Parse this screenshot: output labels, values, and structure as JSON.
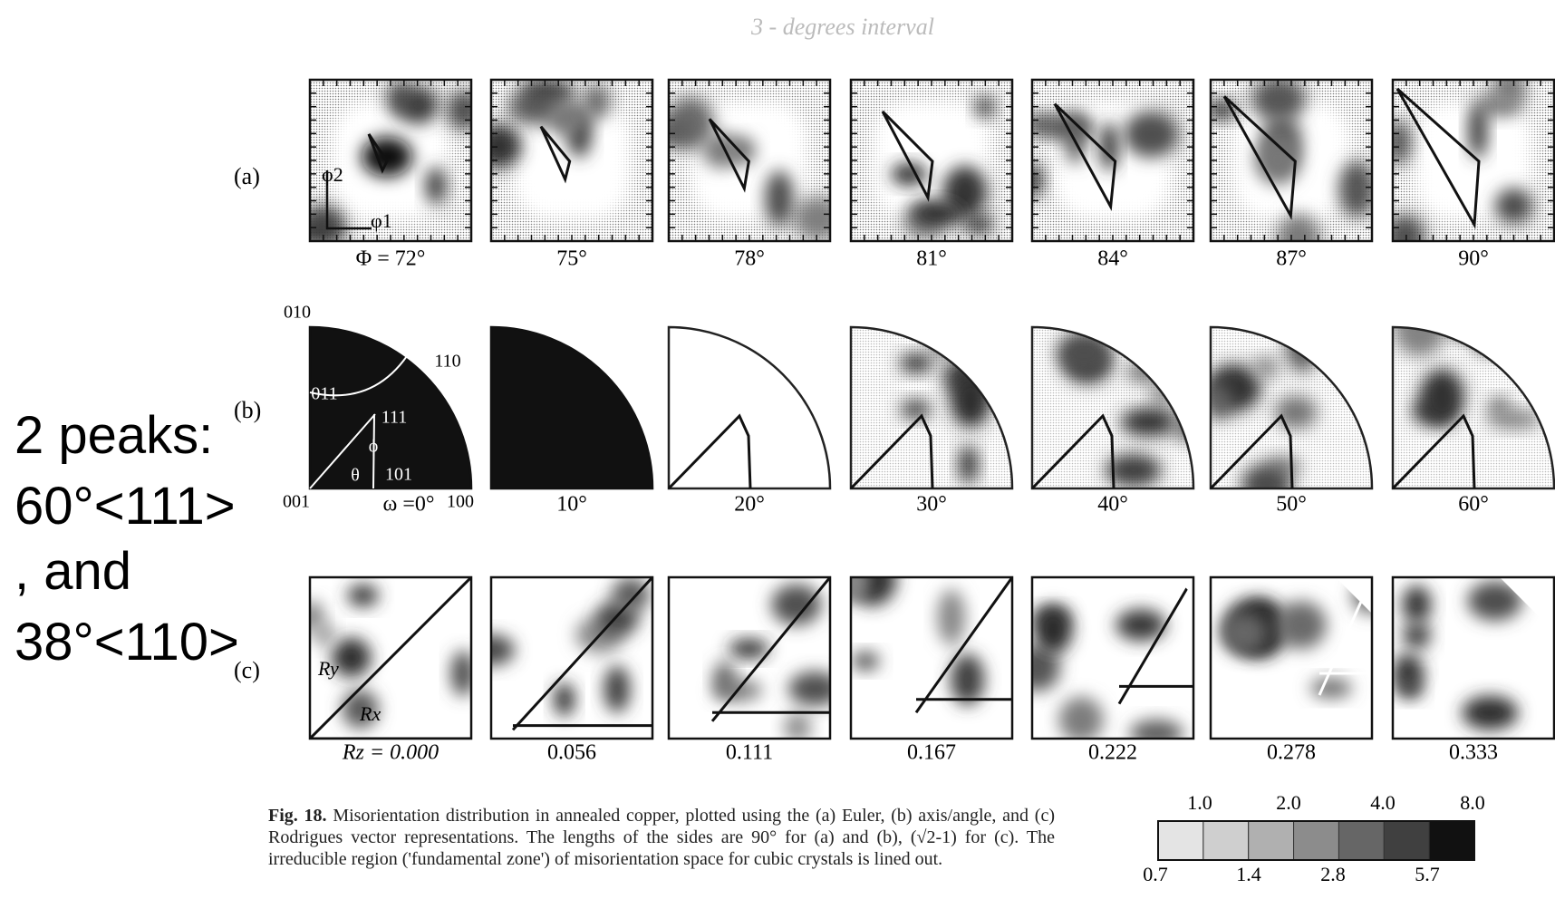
{
  "handwritten": "3 - degrees interval",
  "overlay_text": [
    "2 peaks:",
    "60°<111>",
    ", and",
    "38°<110>"
  ],
  "rows": [
    {
      "label": "(a)",
      "captions": [
        "Φ = 72°",
        "75°",
        "78°",
        "81°",
        "84°",
        "87°",
        "90°"
      ],
      "annotations": [
        "φ2",
        "φ1"
      ]
    },
    {
      "label": "(b)",
      "captions": [
        "ω =0°",
        "10°",
        "20°",
        "30°",
        "40°",
        "50°",
        "60°"
      ],
      "annotations": [
        "010",
        "110",
        "011",
        "111",
        "101",
        "001",
        "100",
        "θ",
        "ϕ"
      ]
    },
    {
      "label": "(c)",
      "captions": [
        "Rz = 0.000",
        "0.056",
        "0.111",
        "0.167",
        "0.222",
        "0.278",
        "0.333"
      ],
      "annotations": [
        "Ry",
        "Rx"
      ]
    }
  ],
  "caption": {
    "label": "Fig. 18.",
    "text": "Misorientation distribution in annealed copper, plotted using the (a) Euler, (b) axis/angle, and (c) Rodrigues vector representations. The lengths of the sides are 90° for (a) and (b), (√2-1) for (c). The irreducible region ('fundamental zone') of misorientation space for cubic crystals is lined out."
  },
  "legend": {
    "top": [
      "1.0",
      "2.0",
      "4.0",
      "8.0"
    ],
    "bottom": [
      "0.7",
      "1.4",
      "2.8",
      "5.7"
    ]
  }
}
